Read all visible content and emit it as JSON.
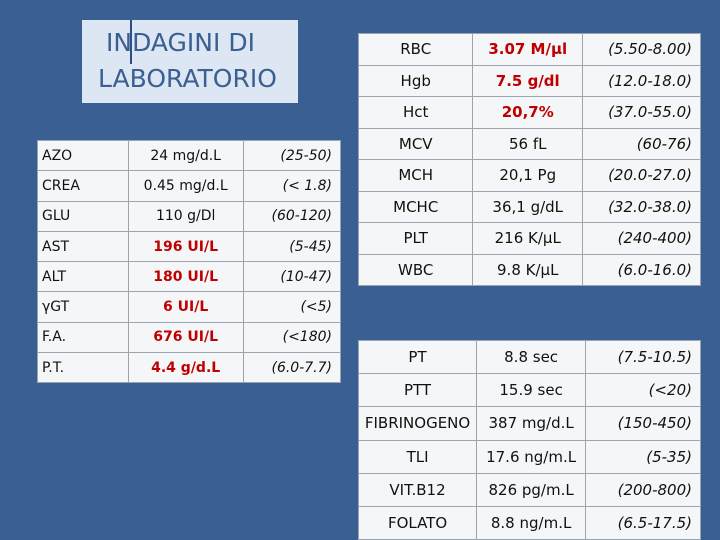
{
  "title": {
    "line1": "INDAGINI DI",
    "line2": "LABORATORIO"
  },
  "left_table": [
    {
      "name": "AZO",
      "value": "24 mg/d.L",
      "range": "(25-50)",
      "abnormal": false
    },
    {
      "name": "CREA",
      "value": "0.45 mg/d.L",
      "range": "(< 1.8)",
      "abnormal": false
    },
    {
      "name": "GLU",
      "value": "110 g/Dl",
      "range": "(60-120)",
      "abnormal": false
    },
    {
      "name": "AST",
      "value": "196 UI/L",
      "range": "(5-45)",
      "abnormal": true
    },
    {
      "name": "ALT",
      "value": "180 UI/L",
      "range": "(10-47)",
      "abnormal": true
    },
    {
      "name": "γGT",
      "value": "6 UI/L",
      "range": "(<5)",
      "abnormal": true
    },
    {
      "name": "F.A.",
      "value": "676 UI/L",
      "range": "(<180)",
      "abnormal": true
    },
    {
      "name": "P.T.",
      "value": "4.4 g/d.L",
      "range": "(6.0-7.7)",
      "abnormal": true
    }
  ],
  "right_top_table": [
    {
      "name": "RBC",
      "value": "3.07 M/μl",
      "range": "(5.50-8.00)",
      "abnormal": true
    },
    {
      "name": "Hgb",
      "value": "7.5 g/dl",
      "range": "(12.0-18.0)",
      "abnormal": true
    },
    {
      "name": "Hct",
      "value": "20,7%",
      "range": "(37.0-55.0)",
      "abnormal": true
    },
    {
      "name": "MCV",
      "value": "56 fL",
      "range": "(60-76)",
      "abnormal": false
    },
    {
      "name": "MCH",
      "value": "20,1 Pg",
      "range": "(20.0-27.0)",
      "abnormal": false
    },
    {
      "name": "MCHC",
      "value": "36,1 g/dL",
      "range": "(32.0-38.0)",
      "abnormal": false
    },
    {
      "name": "PLT",
      "value": "216 K/μL",
      "range": "(240-400)",
      "abnormal": false
    },
    {
      "name": "WBC",
      "value": "9.8 K/μL",
      "range": "(6.0-16.0)",
      "abnormal": false
    }
  ],
  "right_bottom_table": [
    {
      "name": "PT",
      "value": "8.8 sec",
      "range": "(7.5-10.5)"
    },
    {
      "name": "PTT",
      "value": "15.9 sec",
      "range": "(<20)"
    },
    {
      "name": "FIBRINOGENO",
      "value": "387 mg/d.L",
      "range": "(150-450)"
    },
    {
      "name": "TLI",
      "value": "17.6 ng/m.L",
      "range": "(5-35)"
    },
    {
      "name": "VIT.B12",
      "value": "826 pg/m.L",
      "range": "(200-800)"
    },
    {
      "name": "FOLATO",
      "value": "8.8 ng/m.L",
      "range": "(6.5-17.5)"
    }
  ]
}
